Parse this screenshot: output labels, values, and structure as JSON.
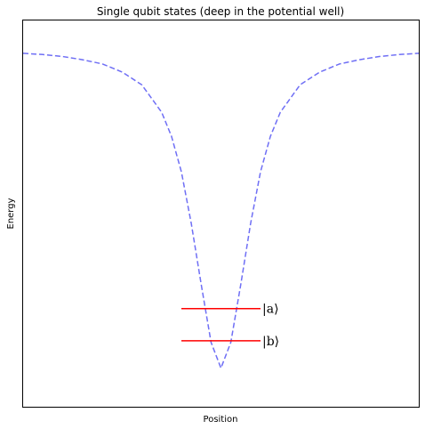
{
  "chart_data": {
    "type": "line",
    "title": "Single qubit states (deep in the potential well)",
    "xlabel": "Position",
    "ylabel": "Energy",
    "xlim": [
      -10,
      10
    ],
    "ylim": [
      -1.1,
      0.1
    ],
    "grid": false,
    "ticks_visible": false,
    "potential": {
      "style": "dashed",
      "color": "#6f6ff5",
      "x": [
        -10,
        -9,
        -8,
        -7,
        -6,
        -5,
        -4,
        -3,
        -2.5,
        -2,
        -1.5,
        -1,
        -0.5,
        0,
        0.5,
        1,
        1.5,
        2,
        2.5,
        3,
        4,
        5,
        6,
        7,
        8,
        9,
        10
      ],
      "y": [
        -0.002,
        -0.006,
        -0.012,
        -0.022,
        -0.035,
        -0.06,
        -0.1,
        -0.185,
        -0.26,
        -0.37,
        -0.53,
        -0.72,
        -0.9,
        -0.98,
        -0.9,
        -0.72,
        -0.53,
        -0.37,
        -0.26,
        -0.185,
        -0.1,
        -0.06,
        -0.035,
        -0.022,
        -0.012,
        -0.006,
        -0.002
      ]
    },
    "levels": [
      {
        "label": "|a⟩",
        "energy": -0.795,
        "x_range": [
          -2,
          2
        ],
        "color": "#ff0000"
      },
      {
        "label": "|b⟩",
        "energy": -0.895,
        "x_range": [
          -2,
          2
        ],
        "color": "#ff0000"
      }
    ]
  }
}
